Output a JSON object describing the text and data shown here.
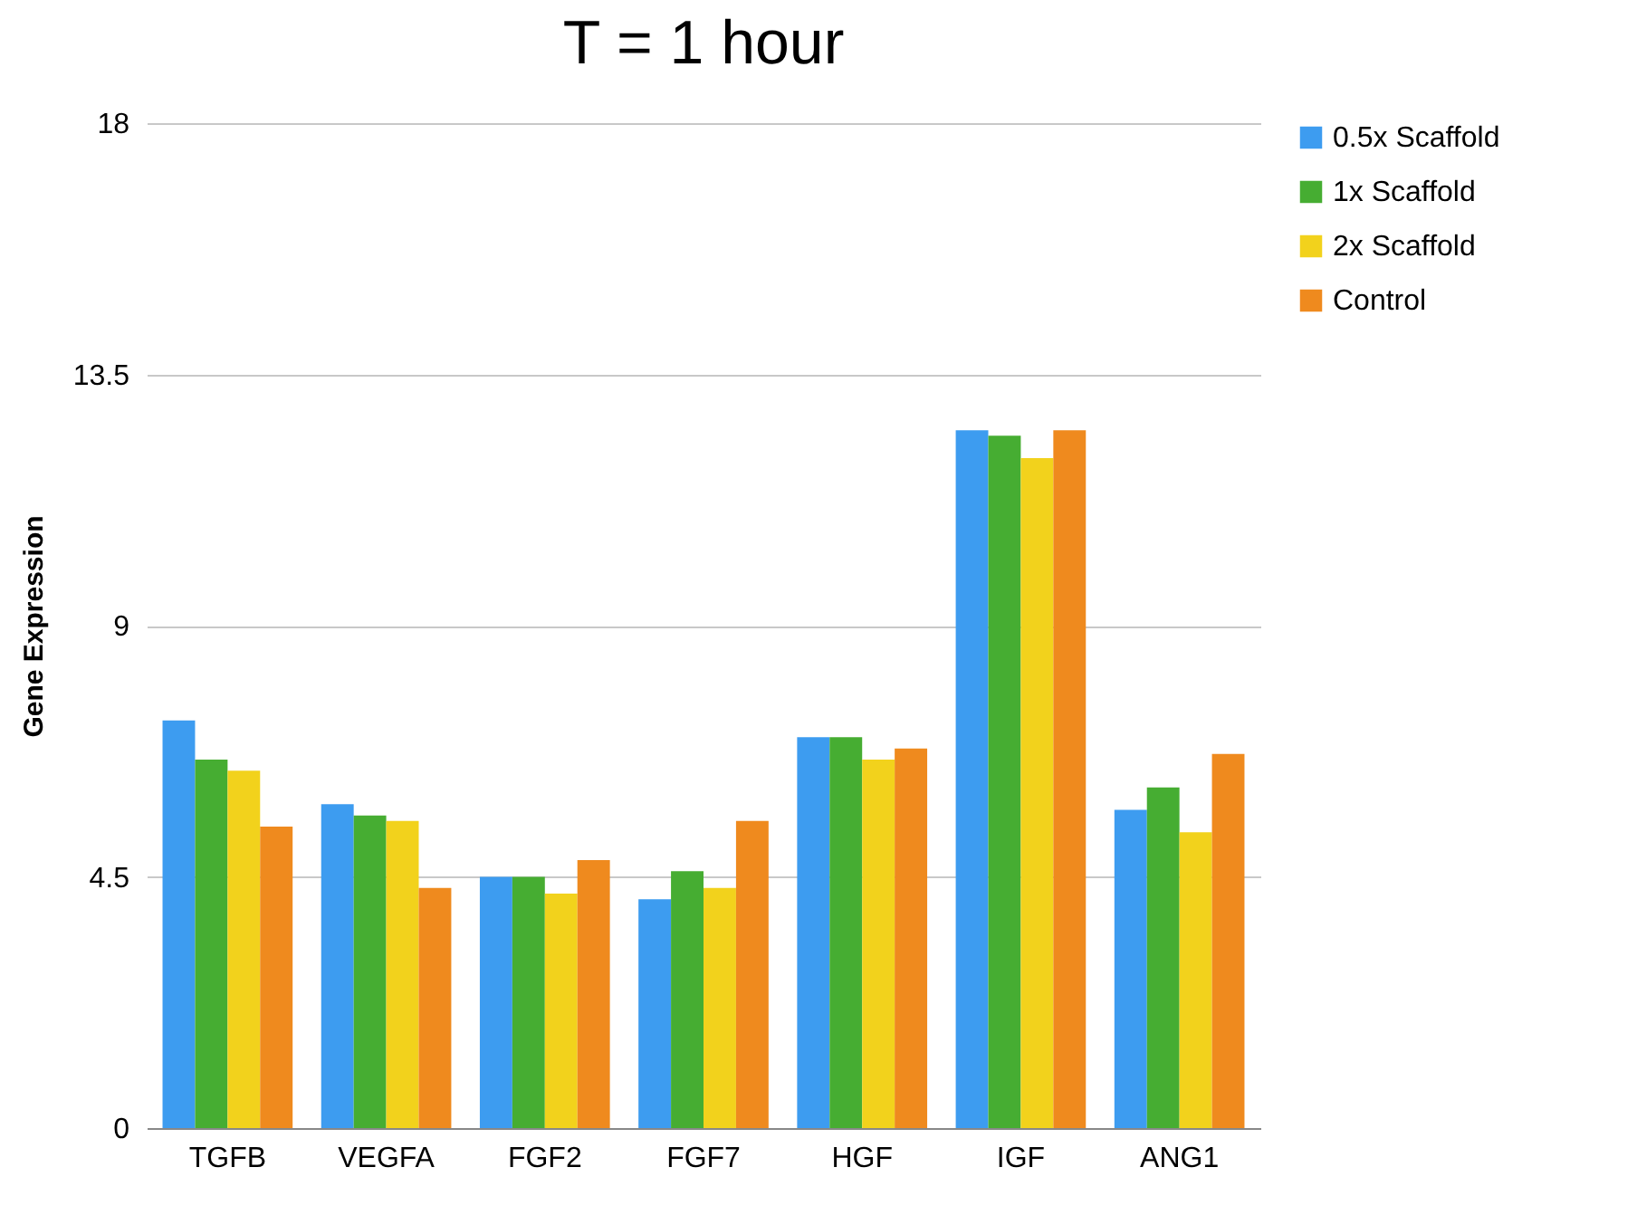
{
  "chart_data": {
    "type": "bar",
    "title": "T = 1 hour",
    "ylabel": "Gene Expression",
    "categories": [
      "TGFB",
      "VEGFA",
      "FGF2",
      "FGF7",
      "HGF",
      "IGF",
      "ANG1"
    ],
    "series": [
      {
        "name": "0.5x Scaffold",
        "color": "#3d9cf0",
        "values": [
          7.3,
          5.8,
          4.5,
          4.1,
          7.0,
          12.5,
          5.7
        ]
      },
      {
        "name": "1x Scaffold",
        "color": "#46ad32",
        "values": [
          6.6,
          5.6,
          4.5,
          4.6,
          7.0,
          12.4,
          6.1
        ]
      },
      {
        "name": "2x Scaffold",
        "color": "#f2d21c",
        "values": [
          6.4,
          5.5,
          4.2,
          4.3,
          6.6,
          12.0,
          5.3
        ]
      },
      {
        "name": "Control",
        "color": "#ef8a1e",
        "values": [
          5.4,
          4.3,
          4.8,
          5.5,
          6.8,
          12.5,
          6.7
        ]
      }
    ],
    "ylim": [
      0,
      18
    ],
    "yticks": [
      0,
      4.5,
      9,
      13.5,
      18
    ],
    "grid": "y",
    "legend": "right"
  }
}
